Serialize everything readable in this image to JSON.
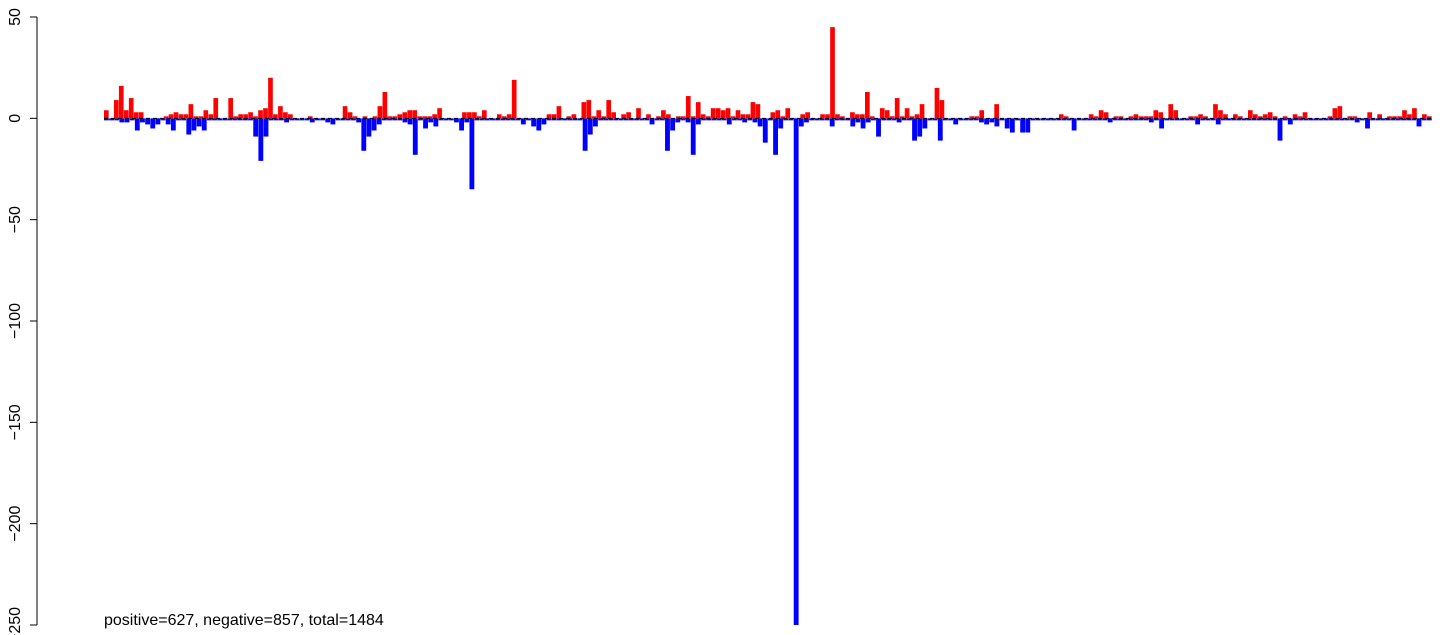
{
  "chart_data": {
    "type": "bar",
    "title": "",
    "xlabel": "",
    "ylabel": "",
    "ylim": [
      -250,
      50
    ],
    "yticks": [
      50,
      0,
      -50,
      -100,
      -150,
      -200,
      -250
    ],
    "grid": false,
    "annotation": "positive=627, negative=857, total=1484",
    "colors": {
      "positive": "#ff0000",
      "negative": "#0000ff"
    },
    "series": [
      {
        "sign": "positive",
        "values": [
          4,
          0,
          9,
          16,
          4,
          10,
          3,
          3,
          0,
          0,
          0,
          0,
          1,
          2,
          3,
          2,
          2,
          7,
          1,
          1,
          4,
          2,
          10,
          0,
          0,
          10,
          1,
          2,
          2,
          3,
          1,
          4,
          5,
          20,
          2,
          6,
          3,
          2,
          0,
          0,
          0,
          1,
          0,
          0,
          0,
          0,
          0,
          0,
          6,
          3,
          1,
          0,
          1,
          0,
          1,
          6,
          13,
          1,
          1,
          2,
          3,
          4,
          4,
          1,
          1,
          1,
          2,
          5,
          0,
          0,
          0,
          0,
          3,
          3,
          3,
          1,
          4,
          0,
          0,
          2,
          1,
          2,
          19,
          0,
          0,
          0,
          0,
          0,
          0,
          2,
          2,
          6,
          0,
          1,
          2,
          0,
          8,
          9,
          1,
          4,
          1,
          9,
          3,
          0,
          2,
          3,
          0,
          5,
          0,
          2,
          0,
          1,
          4,
          2,
          0,
          1,
          1,
          11,
          1,
          8,
          2,
          1,
          5,
          5,
          4,
          5,
          1,
          4,
          2,
          2,
          8,
          7,
          0,
          0,
          3,
          4,
          1,
          5,
          0,
          0,
          2,
          3,
          0,
          0,
          2,
          2,
          45,
          2,
          1,
          0,
          3,
          2,
          2,
          13,
          1,
          0,
          5,
          4,
          1,
          10,
          1,
          5,
          1,
          2,
          7,
          0,
          0,
          15,
          9,
          0,
          0,
          0,
          0,
          0,
          1,
          1,
          4,
          0,
          0,
          7,
          0,
          0,
          0,
          0,
          0,
          0,
          0,
          0,
          0,
          0,
          0,
          0,
          2,
          1,
          0,
          0,
          0,
          0,
          2,
          1,
          4,
          3,
          0,
          1,
          1,
          0,
          1,
          2,
          1,
          1,
          1,
          4,
          3,
          0,
          7,
          4,
          0,
          0,
          1,
          1,
          2,
          1,
          0,
          7,
          4,
          2,
          0,
          2,
          1,
          0,
          4,
          2,
          1,
          2,
          3,
          1,
          0,
          1,
          0,
          2,
          1,
          3,
          0,
          0,
          0,
          0,
          1,
          5,
          6,
          0,
          1,
          1,
          0,
          0,
          3,
          0,
          2,
          0,
          1,
          1,
          1,
          4,
          2,
          5,
          0,
          2,
          1
        ]
      },
      {
        "sign": "negative",
        "values": [
          -1,
          -1,
          -1,
          -2,
          -2,
          -1,
          -6,
          -2,
          -3,
          -5,
          -3,
          -1,
          -3,
          -6,
          -1,
          -1,
          -8,
          -6,
          -4,
          -6,
          -1,
          -1,
          -1,
          -1,
          -1,
          -1,
          -1,
          -1,
          -1,
          -9,
          -21,
          -9,
          -1,
          -1,
          -1,
          -2,
          -1,
          -1,
          -1,
          -1,
          -2,
          -1,
          -1,
          -2,
          -3,
          -1,
          -1,
          -1,
          -1,
          -2,
          -16,
          -9,
          -6,
          -3,
          -1,
          -1,
          -1,
          -1,
          -2,
          -3,
          -18,
          -1,
          -5,
          -2,
          -4,
          -1,
          -1,
          -1,
          -2,
          -6,
          -2,
          -35,
          -1,
          -1,
          -1,
          -1,
          -1,
          -1,
          -1,
          -1,
          -1,
          -3,
          -1,
          -4,
          -6,
          -3,
          -1,
          -1,
          -1,
          -1,
          -1,
          -1,
          -1,
          -16,
          -8,
          -4,
          -1,
          -1,
          -1,
          -1,
          -1,
          -1,
          -1,
          -1,
          -1,
          -1,
          -3,
          -1,
          -1,
          -16,
          -6,
          -2,
          -1,
          -2,
          -18,
          -3,
          -1,
          -1,
          -1,
          -1,
          -1,
          -3,
          -1,
          -1,
          -2,
          -1,
          -2,
          -4,
          -12,
          -1,
          -18,
          -5,
          -1,
          -1,
          -250,
          -4,
          -2,
          -1,
          -1,
          -1,
          -1,
          -4,
          -1,
          -1,
          -1,
          -4,
          -2,
          -5,
          -2,
          -1,
          -9,
          -1,
          -1,
          -1,
          -2,
          -1,
          -1,
          -11,
          -9,
          -5,
          -1,
          -1,
          -11,
          -1,
          -1,
          -3,
          -1,
          -1,
          -1,
          -1,
          -2,
          -3,
          -2,
          -4,
          -1,
          -5,
          -7,
          -1,
          -7,
          -7,
          -1,
          -1,
          -1,
          -1,
          -1,
          -1,
          -1,
          -1,
          -6,
          -1,
          -1,
          -1,
          -1,
          -1,
          -1,
          -2,
          -1,
          -1,
          -1,
          -1,
          -1,
          -1,
          -1,
          -2,
          -1,
          -5,
          -1,
          -1,
          -1,
          -1,
          -1,
          -1,
          -3,
          -1,
          -1,
          -1,
          -3,
          -1,
          -1,
          -1,
          -1,
          -1,
          -1,
          -1,
          -1,
          -1,
          -1,
          -1,
          -11,
          -1,
          -3,
          -1,
          -1,
          -1,
          -1,
          -1,
          -1,
          -1,
          -1,
          -1,
          -1,
          -1,
          -1,
          -2,
          -1,
          -5,
          -1,
          -1,
          -1,
          -1,
          -1,
          -1,
          -1,
          -1,
          -1,
          -4,
          -1,
          -1
        ]
      }
    ]
  }
}
